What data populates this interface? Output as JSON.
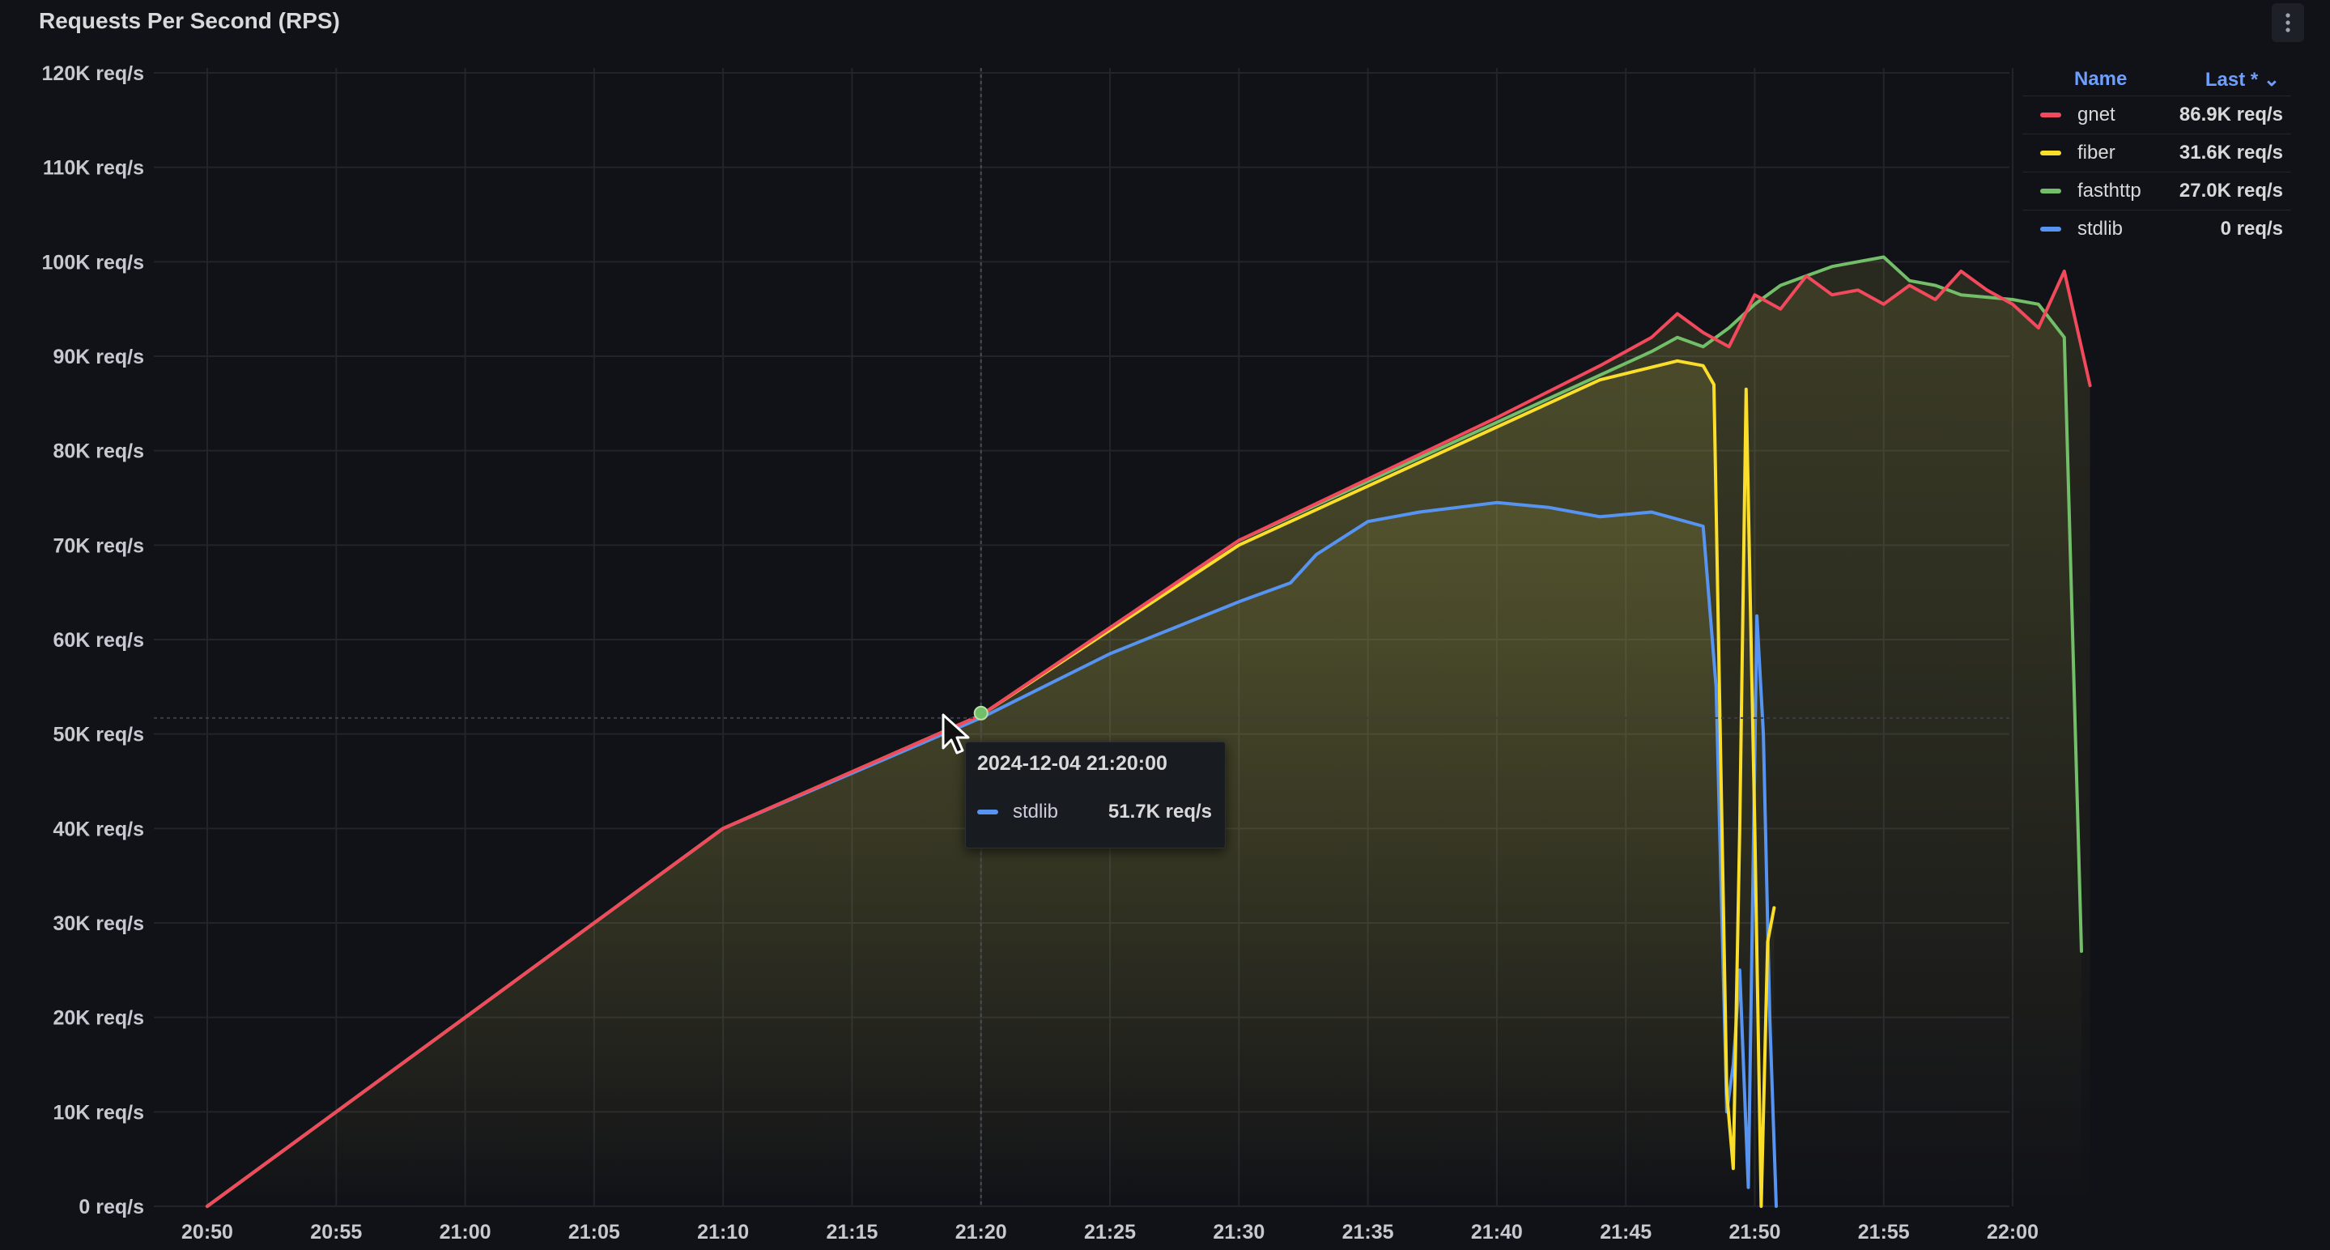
{
  "panel": {
    "title": "Requests Per Second (RPS)",
    "menu_icon": "kebab-menu-icon"
  },
  "legend": {
    "header_name": "Name",
    "header_last": "Last *",
    "items": [
      {
        "name": "gnet",
        "last": "86.9K req/s",
        "color": "#f2495c"
      },
      {
        "name": "fiber",
        "last": "31.6K req/s",
        "color": "#fade2a"
      },
      {
        "name": "fasthttp",
        "last": "27.0K req/s",
        "color": "#73bf69"
      },
      {
        "name": "stdlib",
        "last": "0 req/s",
        "color": "#5794f2"
      }
    ]
  },
  "tooltip": {
    "title": "2024-12-04 21:20:00",
    "series": "stdlib",
    "value": "51.7K req/s"
  },
  "chart_data": {
    "type": "line",
    "title": "Requests Per Second (RPS)",
    "ylim": [
      0,
      120000
    ],
    "y_ticks": [
      0,
      10000,
      20000,
      30000,
      40000,
      50000,
      60000,
      70000,
      80000,
      90000,
      100000,
      110000,
      120000
    ],
    "y_tick_labels": [
      "0 req/s",
      "10K req/s",
      "20K req/s",
      "30K req/s",
      "40K req/s",
      "50K req/s",
      "60K req/s",
      "70K req/s",
      "80K req/s",
      "90K req/s",
      "100K req/s",
      "110K req/s",
      "120K req/s"
    ],
    "x_ticks": [
      "20:50",
      "20:55",
      "21:00",
      "21:05",
      "21:10",
      "21:15",
      "21:20",
      "21:25",
      "21:30",
      "21:35",
      "21:40",
      "21:45",
      "21:50",
      "21:55",
      "22:00"
    ],
    "x_range": [
      "20:50",
      "22:03"
    ],
    "grid": true,
    "legend_placement": "right",
    "hover_time": "21:20",
    "hover_value": 51700,
    "series": [
      {
        "name": "gnet",
        "color": "#f2495c",
        "points": [
          [
            "20:50",
            0
          ],
          [
            "21:00",
            20000
          ],
          [
            "21:10",
            40000
          ],
          [
            "21:20",
            52000
          ],
          [
            "21:30",
            70500
          ],
          [
            "21:40",
            83500
          ],
          [
            "21:44",
            89000
          ],
          [
            "21:46",
            92000
          ],
          [
            "21:47",
            94500
          ],
          [
            "21:48",
            92500
          ],
          [
            "21:49",
            91000
          ],
          [
            "21:50",
            96500
          ],
          [
            "21:51",
            95000
          ],
          [
            "21:52",
            98500
          ],
          [
            "21:53",
            96500
          ],
          [
            "21:54",
            97000
          ],
          [
            "21:55",
            95500
          ],
          [
            "21:56",
            97500
          ],
          [
            "21:57",
            96000
          ],
          [
            "21:58",
            99000
          ],
          [
            "21:59",
            97000
          ],
          [
            "22:00",
            95500
          ],
          [
            "22:01",
            93000
          ],
          [
            "22:02",
            99000
          ],
          [
            "22:03",
            86900
          ]
        ]
      },
      {
        "name": "fasthttp",
        "color": "#73bf69",
        "points": [
          [
            "20:50",
            0
          ],
          [
            "21:00",
            20000
          ],
          [
            "21:10",
            40000
          ],
          [
            "21:20",
            52000
          ],
          [
            "21:30",
            70500
          ],
          [
            "21:40",
            83000
          ],
          [
            "21:44",
            88000
          ],
          [
            "21:46",
            90500
          ],
          [
            "21:47",
            92000
          ],
          [
            "21:48",
            91000
          ],
          [
            "21:49",
            93000
          ],
          [
            "21:50",
            95500
          ],
          [
            "21:51",
            97500
          ],
          [
            "21:52",
            98500
          ],
          [
            "21:53",
            99500
          ],
          [
            "21:54",
            100000
          ],
          [
            "21:55",
            100500
          ],
          [
            "21:56",
            98000
          ],
          [
            "21:57",
            97500
          ],
          [
            "21:58",
            96500
          ],
          [
            "22:00",
            96000
          ],
          [
            "22:01",
            95500
          ],
          [
            "22:02",
            92000
          ],
          [
            "22:02:40",
            27000
          ]
        ]
      },
      {
        "name": "fiber",
        "color": "#fade2a",
        "points": [
          [
            "20:50",
            0
          ],
          [
            "21:00",
            20000
          ],
          [
            "21:10",
            40000
          ],
          [
            "21:20",
            52000
          ],
          [
            "21:30",
            70000
          ],
          [
            "21:40",
            82500
          ],
          [
            "21:44",
            87500
          ],
          [
            "21:47",
            89500
          ],
          [
            "21:48",
            89000
          ],
          [
            "21:48:25",
            87000
          ],
          [
            "21:48:55",
            12000
          ],
          [
            "21:49:10",
            4000
          ],
          [
            "21:49:25",
            40000
          ],
          [
            "21:49:40",
            86500
          ],
          [
            "21:50:00",
            40000
          ],
          [
            "21:50:15",
            0
          ],
          [
            "21:50:30",
            28000
          ],
          [
            "21:50:45",
            31600
          ]
        ]
      },
      {
        "name": "stdlib",
        "color": "#5794f2",
        "points": [
          [
            "20:50",
            0
          ],
          [
            "21:00",
            20000
          ],
          [
            "21:10",
            40000
          ],
          [
            "21:20",
            51700
          ],
          [
            "21:25",
            58500
          ],
          [
            "21:30",
            64000
          ],
          [
            "21:32",
            66000
          ],
          [
            "21:33",
            69000
          ],
          [
            "21:35",
            72500
          ],
          [
            "21:37",
            73500
          ],
          [
            "21:40",
            74500
          ],
          [
            "21:42",
            74000
          ],
          [
            "21:44",
            73000
          ],
          [
            "21:46",
            73500
          ],
          [
            "21:48",
            72000
          ],
          [
            "21:48:30",
            55000
          ],
          [
            "21:48:55",
            10000
          ],
          [
            "21:49:10",
            15000
          ],
          [
            "21:49:25",
            25000
          ],
          [
            "21:49:45",
            2000
          ],
          [
            "21:50:05",
            62500
          ],
          [
            "21:50:20",
            50000
          ],
          [
            "21:50:35",
            20000
          ],
          [
            "21:50:50",
            0
          ]
        ]
      }
    ]
  }
}
